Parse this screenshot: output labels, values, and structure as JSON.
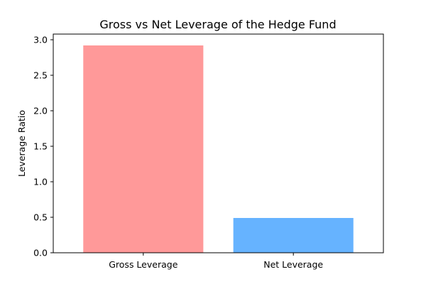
{
  "chart_data": {
    "type": "bar",
    "title": "Gross vs Net Leverage of the Hedge Fund",
    "xlabel": "",
    "ylabel": "Leverage Ratio",
    "categories": [
      "Gross Leverage",
      "Net Leverage"
    ],
    "values": [
      2.92,
      0.49
    ],
    "colors": [
      "#ff9999",
      "#66b3ff"
    ],
    "ylim": [
      0,
      3.08
    ],
    "yticks": [
      0,
      0.5,
      1.0,
      1.5,
      2.0,
      2.5,
      3.0
    ],
    "ytick_labels": [
      "0.0",
      "0.5",
      "1.0",
      "1.5",
      "2.0",
      "2.5",
      "3.0"
    ],
    "grid": false,
    "legend": "none"
  }
}
